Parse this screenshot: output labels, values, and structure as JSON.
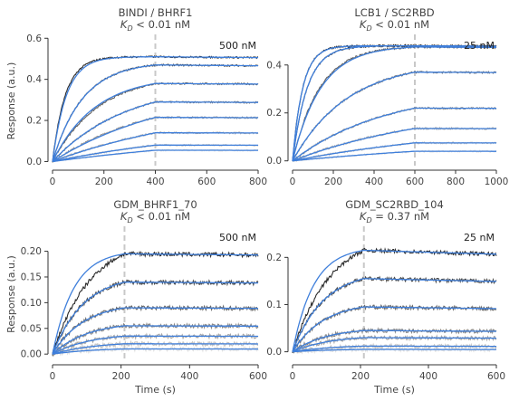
{
  "chart_data": [
    {
      "type": "line",
      "title": "BINDI / BHRF1",
      "kd_symbol": "K",
      "kd_sub": "D",
      "kd_value": " < 0.01 nM",
      "top_concentration": "500 nM",
      "xlim": [
        0,
        800
      ],
      "ylim": [
        -0.02,
        0.61
      ],
      "xticks": [
        0,
        200,
        400,
        600,
        800
      ],
      "yticks": [
        0.0,
        0.2,
        0.4,
        0.6
      ],
      "ytick_labels": [
        "0.0",
        "0.2",
        "0.4",
        "0.6"
      ],
      "ylabel": "Response (a.u.)",
      "xlabel": "",
      "dissociation_start": 400,
      "end_time": 800,
      "noise": 0.004,
      "series": [
        {
          "plateau": 0.51,
          "k_on": 0.02,
          "k_off": 2e-05,
          "fit_scale": 0.92
        },
        {
          "plateau": 0.47,
          "k_on": 0.0085,
          "k_off": 2e-05,
          "fit_scale": 1.0
        },
        {
          "plateau": 0.38,
          "k_on": 0.0055,
          "k_off": 2e-05,
          "fit_scale": 1.1
        },
        {
          "plateau": 0.29,
          "k_on": 0.0035,
          "k_off": 2e-05,
          "fit_scale": 1.0
        },
        {
          "plateau": 0.215,
          "k_on": 0.0025,
          "k_off": 2e-05,
          "fit_scale": 0.84
        },
        {
          "plateau": 0.14,
          "k_on": 0.0017,
          "k_off": 2e-05,
          "fit_scale": 0.9
        },
        {
          "plateau": 0.08,
          "k_on": 0.0013,
          "k_off": 2e-05,
          "fit_scale": 1.0
        },
        {
          "plateau": 0.055,
          "k_on": 0.001,
          "k_off": 2e-05,
          "fit_scale": 1.0
        }
      ]
    },
    {
      "type": "line",
      "title": "LCB1 / SC2RBD",
      "kd_symbol": "K",
      "kd_sub": "D",
      "kd_value": " < 0.01 nM",
      "top_concentration": "25 nM",
      "xlim": [
        0,
        1000
      ],
      "ylim": [
        -0.02,
        0.52
      ],
      "xticks": [
        0,
        200,
        400,
        600,
        800,
        1000
      ],
      "yticks": [
        0.0,
        0.2,
        0.4
      ],
      "ytick_labels": [
        "0.0",
        "0.2",
        "0.4"
      ],
      "ylabel": "",
      "xlabel": "",
      "dissociation_start": 600,
      "end_time": 1000,
      "noise": 0.004,
      "series": [
        {
          "plateau": 0.48,
          "k_on": 0.02,
          "k_off": 1e-05,
          "fit_scale": 1.0
        },
        {
          "plateau": 0.48,
          "k_on": 0.014,
          "k_off": 1e-05,
          "fit_scale": 1.0
        },
        {
          "plateau": 0.475,
          "k_on": 0.0075,
          "k_off": 1e-05,
          "fit_scale": 0.96
        },
        {
          "plateau": 0.37,
          "k_on": 0.0037,
          "k_off": 1e-05,
          "fit_scale": 1.0
        },
        {
          "plateau": 0.22,
          "k_on": 0.0022,
          "k_off": 1e-05,
          "fit_scale": 1.0
        },
        {
          "plateau": 0.135,
          "k_on": 0.0015,
          "k_off": 1e-05,
          "fit_scale": 0.95
        },
        {
          "plateau": 0.075,
          "k_on": 0.001,
          "k_off": 1e-05,
          "fit_scale": 1.0
        },
        {
          "plateau": 0.04,
          "k_on": 0.0008,
          "k_off": 1e-05,
          "fit_scale": 1.0
        }
      ]
    },
    {
      "type": "line",
      "title": "GDM_BHRF1_70",
      "kd_symbol": "K",
      "kd_sub": "D",
      "kd_value": " < 0.01 nM",
      "top_concentration": "500 nM",
      "xlim": [
        0,
        600
      ],
      "ylim": [
        -0.012,
        0.245
      ],
      "xticks": [
        0,
        200,
        400,
        600
      ],
      "yticks": [
        0.0,
        0.05,
        0.1,
        0.15,
        0.2
      ],
      "ytick_labels": [
        "0.00",
        "0.05",
        "0.10",
        "0.15",
        "0.20"
      ],
      "ylabel": "Response (a.u.)",
      "xlabel": "Time (s)",
      "dissociation_start": 210,
      "end_time": 600,
      "noise": 0.004,
      "series": [
        {
          "plateau": 0.195,
          "k_on": 0.009,
          "k_off": 3e-05,
          "fit_scale": 1.8
        },
        {
          "plateau": 0.14,
          "k_on": 0.011,
          "k_off": 3e-05,
          "fit_scale": 1.0
        },
        {
          "plateau": 0.09,
          "k_on": 0.011,
          "k_off": 3e-05,
          "fit_scale": 1.0
        },
        {
          "plateau": 0.055,
          "k_on": 0.01,
          "k_off": 3e-05,
          "fit_scale": 1.0
        },
        {
          "plateau": 0.035,
          "k_on": 0.009,
          "k_off": 3e-05,
          "fit_scale": 1.0
        },
        {
          "plateau": 0.02,
          "k_on": 0.008,
          "k_off": 3e-05,
          "fit_scale": 1.0
        },
        {
          "plateau": 0.01,
          "k_on": 0.008,
          "k_off": 3e-05,
          "fit_scale": 1.0
        }
      ]
    },
    {
      "type": "line",
      "title": "GDM_SC2RBD_104",
      "kd_symbol": "K",
      "kd_sub": "D",
      "kd_value": " = 0.37 nM",
      "top_concentration": "25 nM",
      "xlim": [
        0,
        600
      ],
      "ylim": [
        -0.018,
        0.262
      ],
      "xticks": [
        0,
        200,
        400,
        600
      ],
      "yticks": [
        0.0,
        0.1,
        0.2
      ],
      "ytick_labels": [
        "0.0",
        "0.1",
        "0.2"
      ],
      "ylabel": "",
      "xlabel": "Time (s)",
      "dissociation_start": 210,
      "end_time": 600,
      "noise": 0.004,
      "series": [
        {
          "plateau": 0.215,
          "k_on": 0.009,
          "k_off": 0.0001,
          "fit_scale": 1.8
        },
        {
          "plateau": 0.155,
          "k_on": 0.011,
          "k_off": 0.0001,
          "fit_scale": 1.0
        },
        {
          "plateau": 0.095,
          "k_on": 0.011,
          "k_off": 0.0001,
          "fit_scale": 1.0
        },
        {
          "plateau": 0.045,
          "k_on": 0.01,
          "k_off": 0.0001,
          "fit_scale": 1.0
        },
        {
          "plateau": 0.03,
          "k_on": 0.009,
          "k_off": 0.0001,
          "fit_scale": 1.0
        },
        {
          "plateau": 0.012,
          "k_on": 0.008,
          "k_off": 0.0001,
          "fit_scale": 1.0
        },
        {
          "plateau": 0.005,
          "k_on": 0.008,
          "k_off": 0.0001,
          "fit_scale": 1.0
        }
      ]
    }
  ],
  "colors": {
    "fit": "#3f7fdb",
    "dashed": "#c8c8c8",
    "data_dark": "#2b2b2b",
    "data_light": "#e0e0e0"
  }
}
